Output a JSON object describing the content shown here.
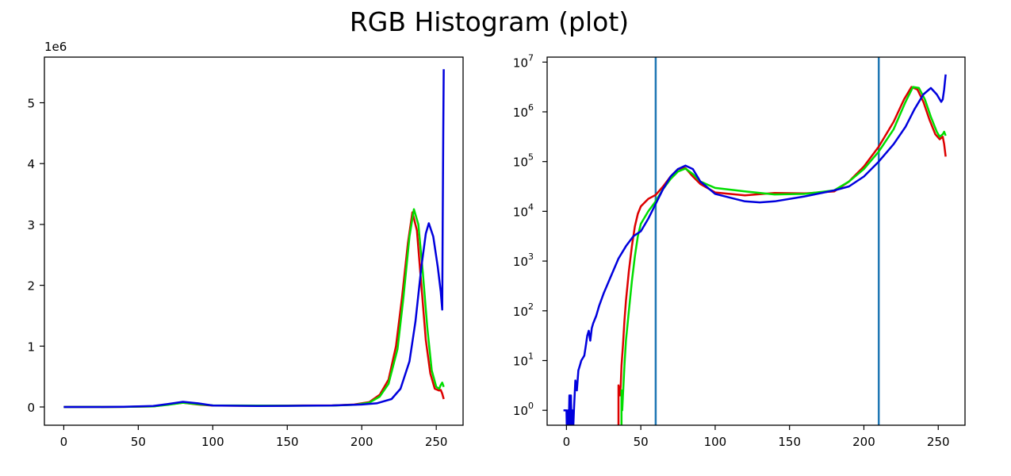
{
  "figure": {
    "title": "RGB Histogram (plot)"
  },
  "chart_data": [
    {
      "type": "line",
      "title": "",
      "xlabel": "",
      "ylabel": "",
      "xlim": [
        -13,
        268
      ],
      "ylim": [
        -0.3,
        5.75
      ],
      "y_scale_factor_label": "1e6",
      "x_ticks": [
        0,
        50,
        100,
        150,
        200,
        250
      ],
      "x_tick_labels": [
        "0",
        "50",
        "100",
        "150",
        "200",
        "250"
      ],
      "y_ticks": [
        0,
        1,
        2,
        3,
        4,
        5
      ],
      "y_tick_labels": [
        "0",
        "1",
        "2",
        "3",
        "4",
        "5"
      ],
      "grid": false,
      "series": [
        {
          "color": "#dd0000",
          "points": [
            [
              0,
              0
            ],
            [
              40,
              0.001
            ],
            [
              60,
              0.01
            ],
            [
              70,
              0.04
            ],
            [
              80,
              0.07
            ],
            [
              90,
              0.04
            ],
            [
              100,
              0.022
            ],
            [
              130,
              0.02
            ],
            [
              150,
              0.024
            ],
            [
              180,
              0.025
            ],
            [
              195,
              0.04
            ],
            [
              205,
              0.08
            ],
            [
              212,
              0.2
            ],
            [
              218,
              0.45
            ],
            [
              223,
              1.0
            ],
            [
              227,
              1.8
            ],
            [
              231,
              2.7
            ],
            [
              234,
              3.2
            ],
            [
              237,
              2.9
            ],
            [
              240,
              2.0
            ],
            [
              243,
              1.1
            ],
            [
              246,
              0.55
            ],
            [
              249,
              0.3
            ],
            [
              252,
              0.27
            ],
            [
              253,
              0.28
            ],
            [
              254,
              0.22
            ],
            [
              255,
              0.13
            ]
          ]
        },
        {
          "color": "#00dd00",
          "points": [
            [
              0,
              0
            ],
            [
              40,
              0.001
            ],
            [
              60,
              0.009
            ],
            [
              70,
              0.035
            ],
            [
              80,
              0.07
            ],
            [
              90,
              0.045
            ],
            [
              100,
              0.026
            ],
            [
              130,
              0.022
            ],
            [
              150,
              0.021
            ],
            [
              180,
              0.023
            ],
            [
              195,
              0.035
            ],
            [
              205,
              0.07
            ],
            [
              212,
              0.17
            ],
            [
              218,
              0.38
            ],
            [
              224,
              0.95
            ],
            [
              228,
              1.8
            ],
            [
              232,
              2.8
            ],
            [
              235,
              3.25
            ],
            [
              238,
              3.0
            ],
            [
              241,
              2.2
            ],
            [
              244,
              1.3
            ],
            [
              247,
              0.6
            ],
            [
              250,
              0.33
            ],
            [
              252,
              0.3
            ],
            [
              253,
              0.36
            ],
            [
              254,
              0.4
            ],
            [
              255,
              0.33
            ]
          ]
        },
        {
          "color": "#0000dd",
          "points": [
            [
              0,
              0
            ],
            [
              20,
              0.0003
            ],
            [
              40,
              0.003
            ],
            [
              60,
              0.015
            ],
            [
              70,
              0.05
            ],
            [
              80,
              0.085
            ],
            [
              90,
              0.06
            ],
            [
              100,
              0.025
            ],
            [
              130,
              0.015
            ],
            [
              150,
              0.018
            ],
            [
              180,
              0.025
            ],
            [
              200,
              0.04
            ],
            [
              210,
              0.06
            ],
            [
              220,
              0.13
            ],
            [
              226,
              0.3
            ],
            [
              232,
              0.75
            ],
            [
              236,
              1.4
            ],
            [
              240,
              2.3
            ],
            [
              243,
              2.85
            ],
            [
              245,
              3.02
            ],
            [
              248,
              2.8
            ],
            [
              251,
              2.3
            ],
            [
              253,
              1.9
            ],
            [
              254,
              1.6
            ],
            [
              254.3,
              3.0
            ],
            [
              254.7,
              4.5
            ],
            [
              255,
              5.55
            ]
          ]
        }
      ]
    },
    {
      "type": "line",
      "title": "",
      "xlabel": "",
      "ylabel": "",
      "xlim": [
        -13,
        268
      ],
      "ylim_log10": [
        -0.3,
        7.1
      ],
      "y_scale": "log",
      "x_ticks": [
        0,
        50,
        100,
        150,
        200,
        250
      ],
      "x_tick_labels": [
        "0",
        "50",
        "100",
        "150",
        "200",
        "250"
      ],
      "y_ticks_exp": [
        0,
        1,
        2,
        3,
        4,
        5,
        6,
        7
      ],
      "y_tick_base": "10",
      "grid": false,
      "vlines": [
        {
          "x": 60,
          "color": "#1f77b4"
        },
        {
          "x": 210,
          "color": "#1f77b4"
        }
      ],
      "series": [
        {
          "color": "#dd0000",
          "points": [
            [
              35,
              -0.4
            ],
            [
              35,
              0.5
            ],
            [
              36,
              0.3
            ],
            [
              36.5,
              0.5
            ],
            [
              37,
              0.9
            ],
            [
              38,
              1.3
            ],
            [
              39,
              1.8
            ],
            [
              40,
              2.2
            ],
            [
              42,
              2.8
            ],
            [
              44,
              3.3
            ],
            [
              46,
              3.7
            ],
            [
              48,
              3.95
            ],
            [
              50,
              4.1
            ],
            [
              55,
              4.25
            ],
            [
              60,
              4.33
            ],
            [
              65,
              4.5
            ],
            [
              70,
              4.7
            ],
            [
              75,
              4.85
            ],
            [
              80,
              4.87
            ],
            [
              85,
              4.7
            ],
            [
              90,
              4.55
            ],
            [
              100,
              4.38
            ],
            [
              120,
              4.32
            ],
            [
              140,
              4.37
            ],
            [
              160,
              4.36
            ],
            [
              180,
              4.4
            ],
            [
              190,
              4.6
            ],
            [
              200,
              4.9
            ],
            [
              210,
              5.3
            ],
            [
              220,
              5.8
            ],
            [
              227,
              6.25
            ],
            [
              232,
              6.5
            ],
            [
              236,
              6.45
            ],
            [
              240,
              6.2
            ],
            [
              244,
              5.85
            ],
            [
              248,
              5.55
            ],
            [
              251,
              5.45
            ],
            [
              253,
              5.5
            ],
            [
              254,
              5.35
            ],
            [
              255,
              5.1
            ]
          ]
        },
        {
          "color": "#00dd00",
          "points": [
            [
              37,
              -0.4
            ],
            [
              37,
              0.4
            ],
            [
              37.5,
              0
            ],
            [
              38,
              0.3
            ],
            [
              39,
              0.9
            ],
            [
              40,
              1.4
            ],
            [
              42,
              2.0
            ],
            [
              44,
              2.6
            ],
            [
              46,
              3.1
            ],
            [
              48,
              3.5
            ],
            [
              50,
              3.75
            ],
            [
              55,
              4.0
            ],
            [
              60,
              4.2
            ],
            [
              65,
              4.45
            ],
            [
              70,
              4.65
            ],
            [
              75,
              4.8
            ],
            [
              80,
              4.86
            ],
            [
              85,
              4.75
            ],
            [
              90,
              4.6
            ],
            [
              100,
              4.47
            ],
            [
              120,
              4.4
            ],
            [
              140,
              4.34
            ],
            [
              160,
              4.35
            ],
            [
              180,
              4.42
            ],
            [
              190,
              4.6
            ],
            [
              200,
              4.85
            ],
            [
              210,
              5.2
            ],
            [
              220,
              5.65
            ],
            [
              228,
              6.2
            ],
            [
              233,
              6.5
            ],
            [
              237,
              6.48
            ],
            [
              241,
              6.25
            ],
            [
              245,
              5.9
            ],
            [
              249,
              5.6
            ],
            [
              251,
              5.5
            ],
            [
              253,
              5.55
            ],
            [
              254,
              5.6
            ],
            [
              255,
              5.52
            ]
          ]
        },
        {
          "color": "#0000dd",
          "points": [
            [
              -2,
              0
            ],
            [
              0,
              0
            ],
            [
              0.3,
              -0.4
            ],
            [
              1,
              0
            ],
            [
              1.5,
              -0.4
            ],
            [
              2,
              0.3
            ],
            [
              2.5,
              -0.4
            ],
            [
              3,
              0.3
            ],
            [
              3.5,
              -0.4
            ],
            [
              4,
              0
            ],
            [
              4.5,
              -0.4
            ],
            [
              5,
              0
            ],
            [
              6,
              0.6
            ],
            [
              7,
              0.4
            ],
            [
              8,
              0.8
            ],
            [
              9,
              0.9
            ],
            [
              10,
              1.0
            ],
            [
              11,
              1.05
            ],
            [
              12,
              1.1
            ],
            [
              13,
              1.3
            ],
            [
              14,
              1.5
            ],
            [
              15,
              1.6
            ],
            [
              16,
              1.4
            ],
            [
              17,
              1.65
            ],
            [
              18,
              1.75
            ],
            [
              20,
              1.9
            ],
            [
              22,
              2.1
            ],
            [
              25,
              2.35
            ],
            [
              30,
              2.7
            ],
            [
              35,
              3.05
            ],
            [
              40,
              3.3
            ],
            [
              45,
              3.5
            ],
            [
              50,
              3.6
            ],
            [
              55,
              3.85
            ],
            [
              60,
              4.15
            ],
            [
              65,
              4.45
            ],
            [
              70,
              4.7
            ],
            [
              75,
              4.85
            ],
            [
              80,
              4.92
            ],
            [
              85,
              4.85
            ],
            [
              90,
              4.6
            ],
            [
              100,
              4.35
            ],
            [
              120,
              4.2
            ],
            [
              130,
              4.18
            ],
            [
              140,
              4.2
            ],
            [
              160,
              4.3
            ],
            [
              180,
              4.42
            ],
            [
              190,
              4.5
            ],
            [
              200,
              4.7
            ],
            [
              210,
              5.0
            ],
            [
              220,
              5.35
            ],
            [
              228,
              5.7
            ],
            [
              234,
              6.05
            ],
            [
              240,
              6.35
            ],
            [
              245,
              6.48
            ],
            [
              249,
              6.35
            ],
            [
              252,
              6.2
            ],
            [
              253,
              6.25
            ],
            [
              254,
              6.45
            ],
            [
              255,
              6.75
            ]
          ]
        }
      ]
    }
  ]
}
